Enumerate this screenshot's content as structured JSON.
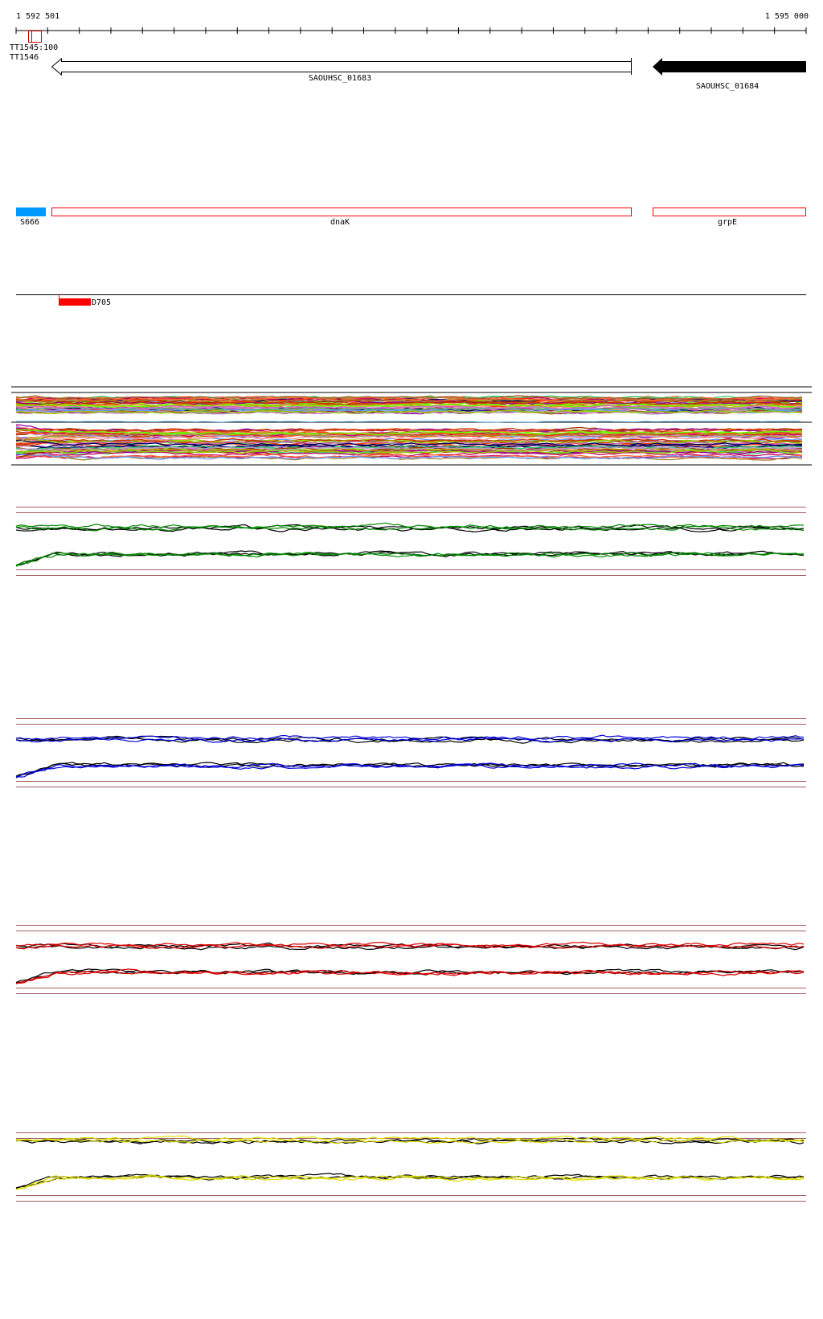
{
  "ruler": {
    "start_label": "1 592 501",
    "end_label": "1 595 000",
    "start": 1592501,
    "end": 1595000
  },
  "terminator": {
    "label": "TT1545:100",
    "overlap_label": "TT1546",
    "color": "#cc0000"
  },
  "genes": [
    {
      "label": "SAOUHSC_01683",
      "strand": "-",
      "filled": false
    },
    {
      "label": "SAOUHSC_01684",
      "strand": "-",
      "filled": true
    }
  ],
  "features": [
    {
      "label": "S666",
      "color": "#0099ff",
      "filled": true
    },
    {
      "label": "dnaK",
      "color": "#ff0000",
      "filled": false
    },
    {
      "label": "grpE",
      "color": "#ff0000",
      "filled": false
    }
  ],
  "track_marker": {
    "label": "D705",
    "color": "#ff0000"
  },
  "expression_panels": [
    {
      "color": "#008800"
    },
    {
      "color": "#0000dd"
    },
    {
      "color": "#dd0000"
    },
    {
      "color": "#dddd00"
    }
  ],
  "panel_border_color": "#a06060"
}
